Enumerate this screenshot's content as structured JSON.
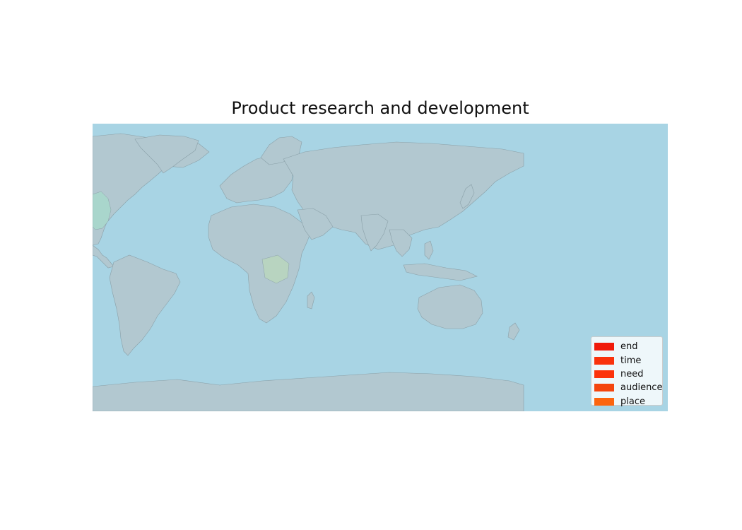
{
  "title": "Product research and development",
  "colors": {
    "ocean": "#a8d4e4",
    "land": "#b2c8d0",
    "border": "#8aa0a8"
  },
  "legend": {
    "items": [
      {
        "label": "end",
        "color": "#f01a0a"
      },
      {
        "label": "time",
        "color": "#fa320c"
      },
      {
        "label": "need",
        "color": "#fc320a"
      },
      {
        "label": "audience",
        "color": "#f4450e"
      },
      {
        "label": "place",
        "color": "#fc650f"
      }
    ]
  }
}
